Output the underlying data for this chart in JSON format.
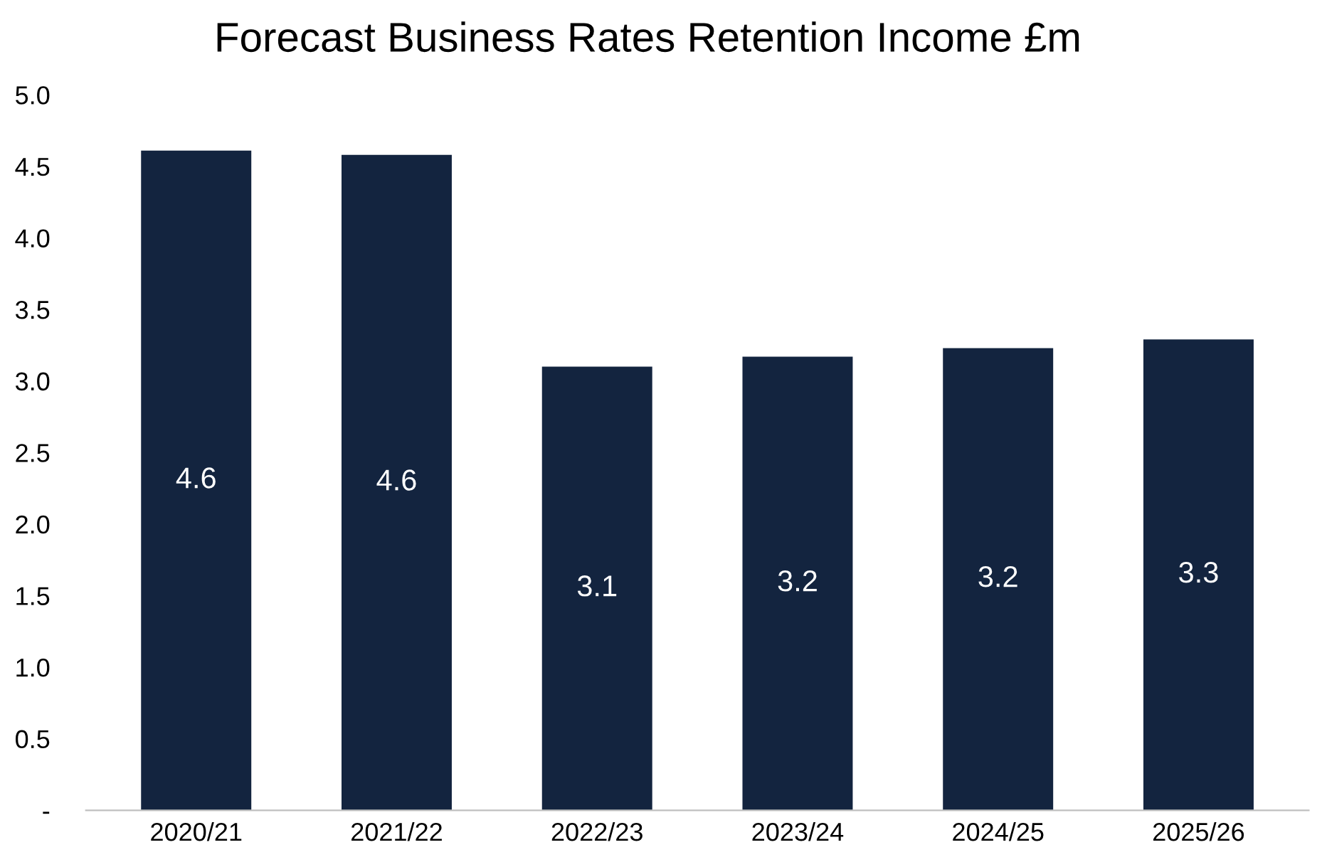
{
  "chart_data": {
    "type": "bar",
    "title": "Forecast Business Rates Retention Income £m",
    "categories": [
      "2020/21",
      "2021/22",
      "2022/23",
      "2023/24",
      "2024/25",
      "2025/26"
    ],
    "values": [
      4.61,
      4.58,
      3.1,
      3.17,
      3.23,
      3.29
    ],
    "value_labels": [
      "4.6",
      "4.6",
      "3.1",
      "3.2",
      "3.2",
      "3.3"
    ],
    "color": "#13243f",
    "ylim": [
      0,
      5
    ],
    "yticks": [
      {
        "value": 0,
        "label": "-"
      },
      {
        "value": 0.5,
        "label": "0.5"
      },
      {
        "value": 1,
        "label": "1.0"
      },
      {
        "value": 1.5,
        "label": "1.5"
      },
      {
        "value": 2,
        "label": "2.0"
      },
      {
        "value": 2.5,
        "label": "2.5"
      },
      {
        "value": 3,
        "label": "3.0"
      },
      {
        "value": 3.5,
        "label": "3.5"
      },
      {
        "value": 4,
        "label": "4.0"
      },
      {
        "value": 4.5,
        "label": "4.5"
      },
      {
        "value": 5,
        "label": "5.0"
      }
    ],
    "grid": false,
    "legend": false
  }
}
